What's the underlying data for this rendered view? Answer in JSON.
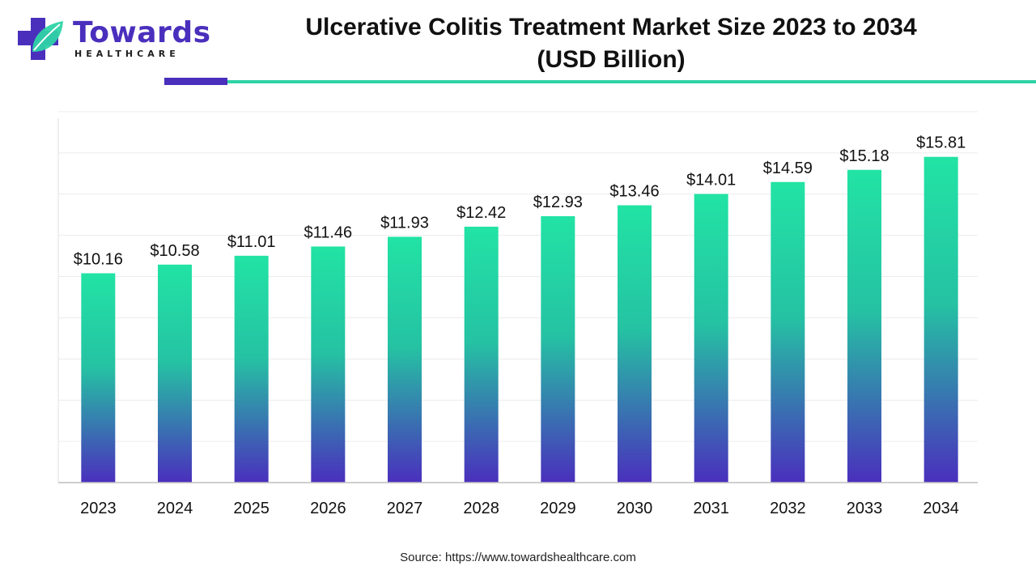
{
  "header": {
    "logo_word": "Towards",
    "logo_sub": "HEALTHCARE",
    "title_line1": "Ulcerative Colitis Treatment Market Size 2023 to 2034",
    "title_line2": "(USD Billion)"
  },
  "colors": {
    "brand_purple": "#4a2fbd",
    "brand_teal": "#2ed3a6",
    "bar_top": "#22e3a4",
    "bar_bottom": "#4a2fbd"
  },
  "chart_data": {
    "type": "bar",
    "categories": [
      "2023",
      "2024",
      "2025",
      "2026",
      "2027",
      "2028",
      "2029",
      "2030",
      "2031",
      "2032",
      "2033",
      "2034"
    ],
    "values": [
      10.16,
      10.58,
      11.01,
      11.46,
      11.93,
      12.42,
      12.93,
      13.46,
      14.01,
      14.59,
      15.18,
      15.81
    ],
    "labels": [
      "$10.16",
      "$10.58",
      "$11.01",
      "$11.46",
      "$11.93",
      "$12.42",
      "$12.93",
      "$13.46",
      "$14.01",
      "$14.59",
      "$15.18",
      "$15.81"
    ],
    "ylim": [
      0,
      18
    ],
    "grid": true,
    "legend": false
  },
  "footer": {
    "source": "Source: https://www.towardshealthcare.com"
  }
}
